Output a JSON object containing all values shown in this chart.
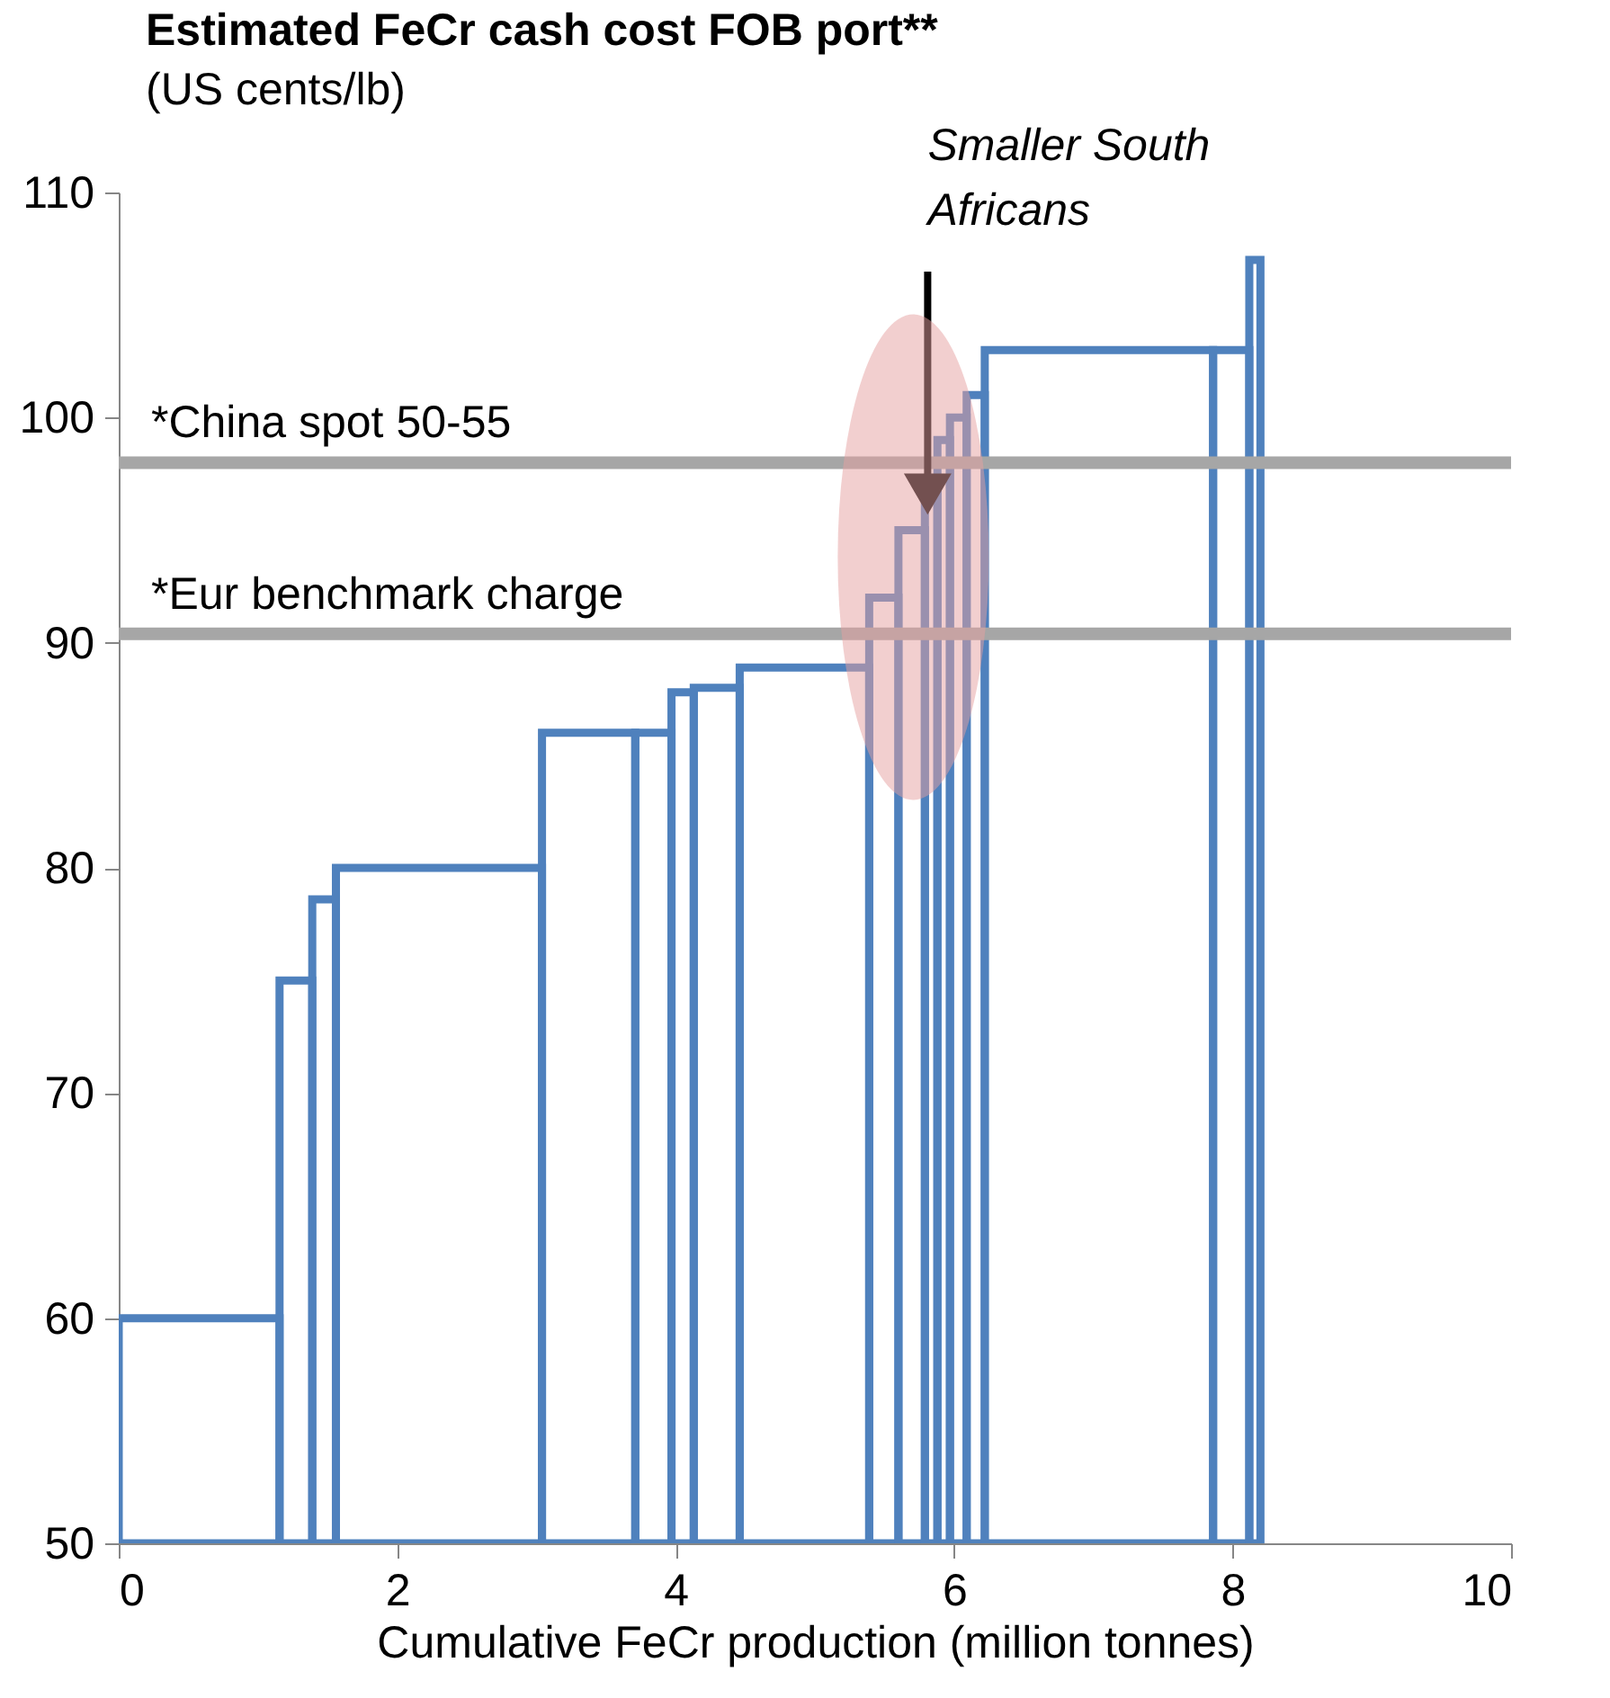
{
  "chart_data": {
    "type": "histogram",
    "title": "Estimated FeCr cash cost FOB port**",
    "subtitle": "(US cents/lb)",
    "xlabel": "Cumulative FeCr production (million tonnes)",
    "bins": [
      0,
      1.155,
      1.39,
      1.56,
      3.04,
      3.71,
      3.97,
      4.13,
      4.46,
      5.39,
      5.6,
      5.79,
      5.88,
      5.97,
      6.09,
      6.22,
      7.86,
      8.12,
      8.2
    ],
    "values": [
      60,
      75,
      78.6,
      80,
      86,
      86,
      87.8,
      88,
      88.9,
      92,
      95,
      97,
      99,
      100,
      101,
      103,
      103,
      107
    ],
    "color": "#4f81bd",
    "xlim": [
      0,
      10
    ],
    "xticks": [
      0,
      2,
      4,
      6,
      8,
      10
    ],
    "ylim": [
      50,
      110
    ],
    "yticks": [
      50,
      60,
      70,
      80,
      90,
      100,
      110
    ],
    "grid": false,
    "ref_lines": [
      {
        "axis": "y",
        "value": 98,
        "label": "*China spot 50-55",
        "color": "#a6a6a6"
      },
      {
        "axis": "y",
        "value": 90.4,
        "label": "*Eur benchmark  charge",
        "color": "#a6a6a6"
      }
    ],
    "annotations": [
      {
        "text": "Smaller South Africans",
        "x": 5.81,
        "y": 96.6
      }
    ]
  }
}
